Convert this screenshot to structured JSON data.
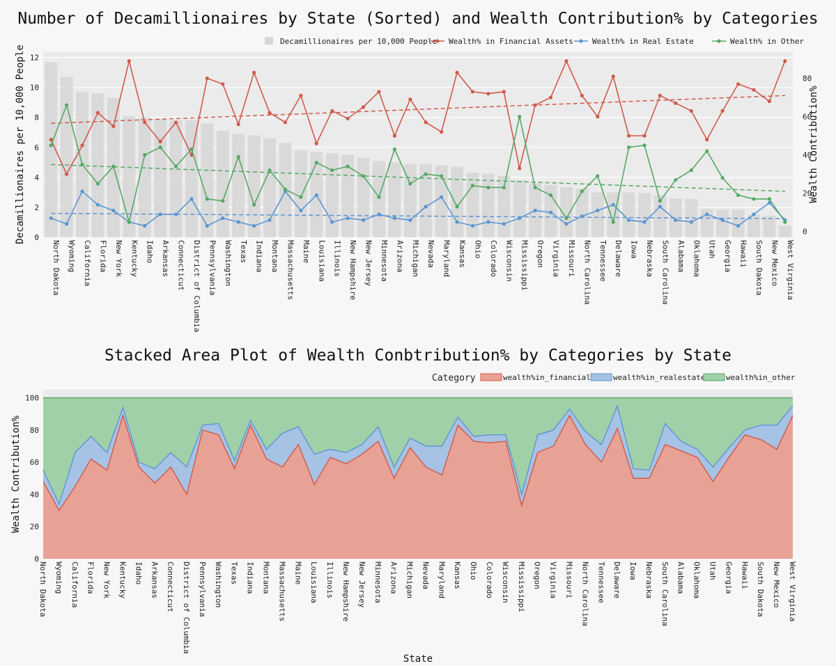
{
  "chart_data": [
    {
      "type": "bar+line",
      "title": "Number of Decamillionaires by State (Sorted) and Wealth Contribution% by Categories",
      "ylabel": "Decamillionaires per 10,000 People",
      "y2label": "Wealth Contribution%",
      "ylim": [
        0,
        12.4
      ],
      "y2lim": [
        -3,
        94
      ],
      "yticks": [
        0,
        2,
        4,
        6,
        8,
        10,
        12
      ],
      "y2ticks": [
        0,
        20,
        40,
        60,
        80
      ],
      "grid": true,
      "legend_position": "top-right",
      "colors": {
        "bars": "#d7d7d7",
        "financial": "#d1594a",
        "realestate": "#5b95d3",
        "other": "#55a865"
      },
      "categories": [
        "North Dakota",
        "Wyoming",
        "California",
        "Florida",
        "New York",
        "Kentucky",
        "Idaho",
        "Arkansas",
        "Connecticut",
        "District of Columbia",
        "Pennsylvania",
        "Washington",
        "Texas",
        "Indiana",
        "Montana",
        "Massachusetts",
        "Maine",
        "Louisiana",
        "Illinois",
        "New Hampshire",
        "New Jersey",
        "Minnesota",
        "Arizona",
        "Michigan",
        "Nevada",
        "Maryland",
        "Kansas",
        "Ohio",
        "Colorado",
        "Wisconsin",
        "Mississippi",
        "Oregon",
        "Virginia",
        "Missouri",
        "North Carolina",
        "Tennessee",
        "Delaware",
        "Iowa",
        "Nebraska",
        "South Carolina",
        "Alabama",
        "Oklahoma",
        "Utah",
        "Georgia",
        "Hawaii",
        "South Dakota",
        "New Mexico",
        "West Virginia"
      ],
      "bars": {
        "name": "Decamillionaires per 10,000 People",
        "values": [
          11.7,
          10.7,
          9.7,
          9.6,
          9.3,
          8.1,
          8.0,
          7.9,
          7.8,
          7.8,
          7.6,
          7.1,
          6.9,
          6.8,
          6.6,
          6.3,
          5.8,
          5.7,
          5.6,
          5.5,
          5.3,
          5.1,
          5.0,
          4.9,
          4.9,
          4.8,
          4.7,
          4.3,
          4.25,
          4.1,
          3.8,
          3.6,
          3.5,
          3.35,
          3.25,
          3.0,
          3.0,
          3.0,
          2.95,
          2.8,
          2.6,
          2.55,
          1.9,
          1.85,
          1.85,
          1.5,
          1.45,
          0.75
        ]
      },
      "series": [
        {
          "name": "Wealth% in Financial Assets",
          "values": [
            48,
            30,
            45,
            62,
            55,
            89,
            57,
            47,
            57,
            40,
            80,
            77,
            56,
            83,
            62,
            57,
            71,
            46,
            63,
            59,
            65,
            73,
            50,
            69,
            57,
            52,
            83,
            73,
            72,
            73,
            33,
            66,
            70,
            89,
            71,
            60,
            81,
            50,
            50,
            71,
            67,
            63,
            48,
            63,
            77,
            74,
            68,
            89
          ]
        },
        {
          "name": "Wealth% in Real Estate",
          "values": [
            7,
            4,
            21,
            14,
            11,
            5,
            3,
            9,
            9,
            17,
            3,
            7,
            5,
            3,
            6,
            21,
            11,
            19,
            5,
            7,
            6,
            9,
            7,
            6,
            13,
            18,
            5,
            3,
            5,
            4,
            7,
            11,
            10,
            4,
            8,
            11,
            14,
            6,
            5,
            13,
            6,
            5,
            9,
            6,
            3,
            9,
            15,
            6
          ]
        },
        {
          "name": "Wealth% in Other",
          "values": [
            45,
            66,
            35,
            25,
            34,
            5,
            40,
            44,
            34,
            43,
            17,
            16,
            39,
            14,
            32,
            22,
            18,
            36,
            32,
            34,
            29,
            18,
            43,
            25,
            30,
            29,
            13,
            24,
            23,
            23,
            60,
            23,
            19,
            7,
            21,
            29,
            5,
            44,
            45,
            16,
            27,
            32,
            42,
            28,
            19,
            17,
            17,
            5
          ]
        }
      ],
      "trend_lines": [
        {
          "series": "Wealth% in Financial Assets",
          "start": 56.5,
          "end": 71
        },
        {
          "series": "Wealth% in Real Estate",
          "start": 9.5,
          "end": 6.7
        },
        {
          "series": "Wealth% in Other",
          "start": 35,
          "end": 21
        }
      ]
    },
    {
      "type": "area",
      "stacked": true,
      "title": "Stacked Area Plot of Wealth Conbtribution% by Categories by State",
      "xlabel": "State",
      "ylabel": "Wealth Contribution%",
      "ylim": [
        0,
        105
      ],
      "yticks": [
        0,
        20,
        40,
        60,
        80,
        100
      ],
      "grid": true,
      "legend_title": "Category",
      "legend_position": "top-right",
      "legend": [
        "wealth%in_financial",
        "wealth%in_realestate",
        "wealth%in_other"
      ],
      "colors": {
        "financial": "#e8a295",
        "financial_line": "#d1594a",
        "realestate": "#a6c2e4",
        "realestate_line": "#5b95d3",
        "other": "#a0d0a8",
        "other_line": "#55a865"
      }
    }
  ]
}
